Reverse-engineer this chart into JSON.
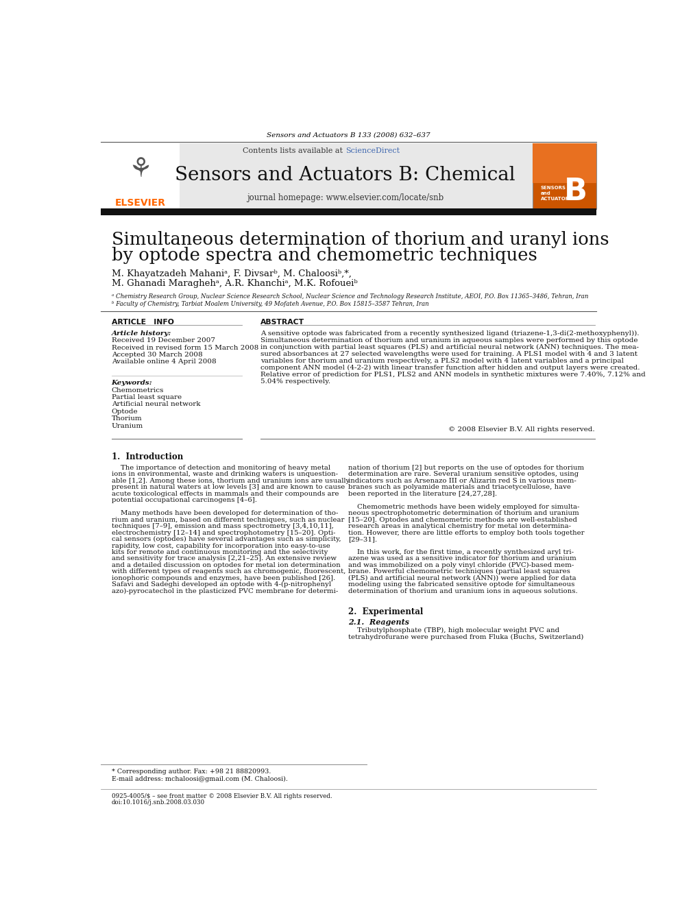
{
  "page_bg": "#ffffff",
  "header_journal_ref": "Sensors and Actuators B 133 (2008) 632–637",
  "journal_name": "Sensors and Actuators B: Chemical",
  "journal_homepage": "journal homepage: www.elsevier.com/locate/snb",
  "contents_text": "Contents lists available at ScienceDirect",
  "sciencedirect_color": "#4169b0",
  "header_bg": "#e8e8e8",
  "header_bar_color": "#1a1a1a",
  "elsevier_color": "#ff6600",
  "article_title_line1": "Simultaneous determination of thorium and uranyl ions",
  "article_title_line2": "by optode spectra and chemometric techniques",
  "authors_line1": "M. Khayatzadeh Mahaniᵃ, F. Divsarᵇ, M. Chaloosiᵇ,*,",
  "authors_line2": "M. Ghanadi Maraghehᵃ, A.R. Khanchiᵃ, M.K. Rofoueiᵇ",
  "affil_a": "ᵃ Chemistry Research Group, Nuclear Science Research School, Nuclear Science and Technology Research Institute, AEOI, P.O. Box 11365–3486, Tehran, Iran",
  "affil_b": "ᵇ Faculty of Chemistry, Tarbiat Moalem University, 49 Mofateh Avenue, P.O. Box 15815–3587 Tehran, Iran",
  "section_article_info": "ARTICLE   INFO",
  "section_abstract": "ABSTRACT",
  "article_history_label": "Article history:",
  "article_history": [
    "Received 19 December 2007",
    "Received in revised form 15 March 2008",
    "Accepted 30 March 2008",
    "Available online 4 April 2008"
  ],
  "keywords_label": "Keywords:",
  "keywords": [
    "Chemometrics",
    "Partial least square",
    "Artificial neural network",
    "Optode",
    "Thorium",
    "Uranium"
  ],
  "abstract_lines": [
    "A sensitive optode was fabricated from a recently synthesized ligand (triazene-1,3-di(2-methoxyphenyl)).",
    "Simultaneous determination of thorium and uranium in aqueous samples were performed by this optode",
    "in conjunction with partial least squares (PLS) and artificial neural network (ANN) techniques. The mea-",
    "sured absorbances at 27 selected wavelengths were used for training. A PLS1 model with 4 and 3 latent",
    "variables for thorium and uranium respectively, a PLS2 model with 4 latent variables and a principal",
    "component ANN model (4-2-2) with linear transfer function after hidden and output layers were created.",
    "Relative error of prediction for PLS1, PLS2 and ANN models in synthetic mixtures were 7.40%, 7.12% and",
    "5.04% respectively."
  ],
  "copyright_text": "© 2008 Elsevier B.V. All rights reserved.",
  "intro_heading": "1.  Introduction",
  "col1_lines": [
    "    The importance of detection and monitoring of heavy metal",
    "ions in environmental, waste and drinking waters is unquestion-",
    "able [1,2]. Among these ions, thorium and uranium ions are usually",
    "present in natural waters at low levels [3] and are known to cause",
    "acute toxicological effects in mammals and their compounds are",
    "potential occupational carcinogens [4–6].",
    "",
    "    Many methods have been developed for determination of tho-",
    "rium and uranium, based on different techniques, such as nuclear",
    "techniques [7–9], emission and mass spectrometry [3,4,10,11],",
    "electrochemistry [12–14] and spectrophotometry [15–20]. Opti-",
    "cal sensors (optodes) have several advantages such as simplicity,",
    "rapidity, low cost, capability for incorporation into easy-to-use",
    "kits for remote and continuous monitoring and the selectivity",
    "and sensitivity for trace analysis [2,21–25]. An extensive review",
    "and a detailed discussion on optodes for metal ion determination",
    "with different types of reagents such as chromogenic, fluorescent,",
    "ionophoric compounds and enzymes, have been published [26].",
    "Safavi and Sadeghi developed an optode with 4-(p-nitrophenyl",
    "azo)-pyrocatechol in the plasticized PVC membrane for determi-"
  ],
  "col2_lines": [
    "nation of thorium [2] but reports on the use of optodes for thorium",
    "determination are rare. Several uranium sensitive optodes, using",
    "indicators such as Arsenazo III or Alizarin red S in various mem-",
    "branes such as polyamide materials and triacetycellulose, have",
    "been reported in the literature [24,27,28].",
    "",
    "    Chemometric methods have been widely employed for simulta-",
    "neous spectrophotometric determination of thorium and uranium",
    "[15–20]. Optodes and chemometric methods are well-established",
    "research areas in analytical chemistry for metal ion determina-",
    "tion. However, there are little efforts to employ both tools together",
    "[29–31].",
    "",
    "    In this work, for the first time, a recently synthesized aryl tri-",
    "azene was used as a sensitive indicator for thorium and uranium",
    "and was immobilized on a poly vinyl chloride (PVC)-based mem-",
    "brane. Powerful chemometric techniques (partial least squares",
    "(PLS) and artificial neural network (ANN)) were applied for data",
    "modeling using the fabricated sensitive optode for simultaneous",
    "determination of thorium and uranium ions in aqueous solutions."
  ],
  "section2_heading": "2.  Experimental",
  "section21_heading": "2.1.  Reagents",
  "reagents_text": "    Tributylphosphate (TBP), high molecular weight PVC and",
  "reagents_text2": "tetrahydrofurane were purchased from Fluka (Buchs, Switzerland)",
  "footnote_star": "* Corresponding author. Fax: +98 21 88820993.",
  "footnote_email": "E-mail address: mchaloosi@gmail.com (M. Chaloosi).",
  "footer_issn": "0925-4005/$ – see front matter © 2008 Elsevier B.V. All rights reserved.",
  "footer_doi": "doi:10.1016/j.snb.2008.03.030"
}
